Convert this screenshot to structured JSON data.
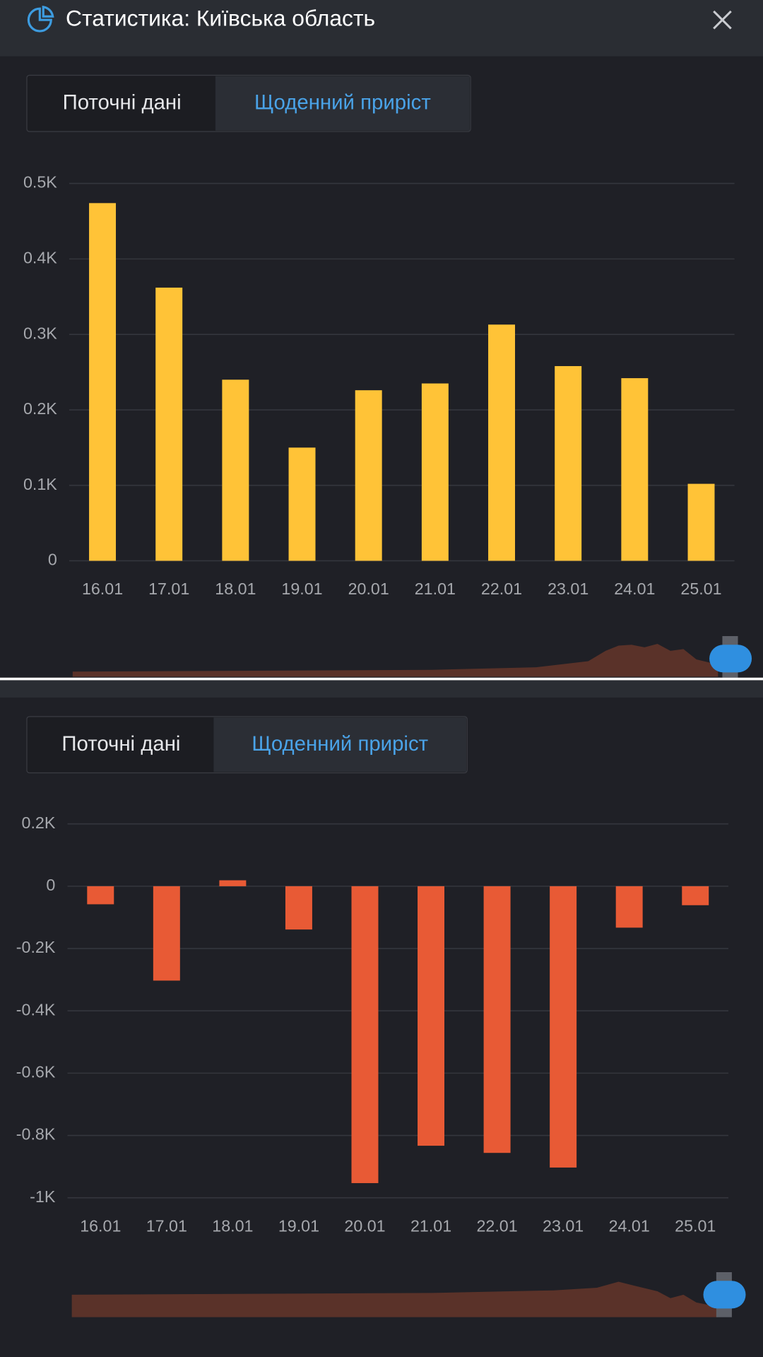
{
  "header": {
    "title": "Статистика: Київська область"
  },
  "tabs": [
    "Поточні дані",
    "Щоденний приріст"
  ],
  "chart_data": [
    {
      "type": "bar",
      "color": "#ffc337",
      "grid": true,
      "categories": [
        "16.01",
        "17.01",
        "18.01",
        "19.01",
        "20.01",
        "21.01",
        "22.01",
        "23.01",
        "24.01",
        "25.01"
      ],
      "values": [
        474,
        362,
        240,
        150,
        226,
        235,
        313,
        258,
        242,
        102
      ],
      "ylim": [
        0,
        500
      ],
      "yticks": [
        0,
        {
          "value": 100,
          "label": "0.1K"
        },
        {
          "value": 200,
          "label": "0.2K"
        },
        {
          "value": 300,
          "label": "0.3K"
        },
        {
          "value": 400,
          "label": "0.4K"
        },
        {
          "value": 500,
          "label": "0.5K"
        }
      ]
    },
    {
      "type": "bar",
      "color": "#e85a35",
      "grid": true,
      "categories": [
        "16.01",
        "17.01",
        "18.01",
        "19.01",
        "20.01",
        "21.01",
        "22.01",
        "23.01",
        "24.01",
        "25.01"
      ],
      "values": [
        -58,
        -303,
        19,
        -139,
        -953,
        -833,
        -856,
        -903,
        -133,
        -61
      ],
      "ylim": [
        -1000,
        200
      ],
      "yticks": [
        {
          "value": -1000,
          "label": "-1K"
        },
        {
          "value": -800,
          "label": "-0.8K"
        },
        {
          "value": -600,
          "label": "-0.6K"
        },
        {
          "value": -400,
          "label": "-0.4K"
        },
        {
          "value": -200,
          "label": "-0.2K"
        },
        0,
        {
          "value": 200,
          "label": "0.2K"
        }
      ]
    }
  ]
}
